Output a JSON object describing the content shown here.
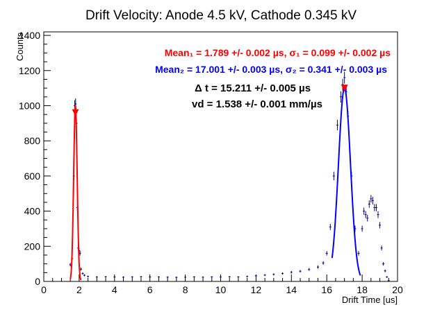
{
  "chart_data": {
    "type": "histogram",
    "title": "Drift Velocity: Anode 4.5 kV, Cathode 0.345 kV",
    "xlabel": "Drift Time [us]",
    "ylabel": "Counts",
    "xlim": [
      0,
      20
    ],
    "ylim": [
      0,
      1420
    ],
    "x_ticks": [
      "0",
      "2",
      "4",
      "6",
      "8",
      "10",
      "12",
      "14",
      "16",
      "18",
      "20"
    ],
    "y_ticks": [
      "0",
      "200",
      "400",
      "600",
      "800",
      "1000",
      "1200",
      "1400"
    ],
    "colors": {
      "data": "#00008b",
      "fit1": "#ff0000",
      "fit2": "#0000ff",
      "annot1": "#ff0000",
      "annot2": "#0000ff",
      "annot3": "#000000"
    },
    "annotations": {
      "mean1": "Mean₁ = 1.789 +/- 0.002 µs, σ₁ = 0.099 +/- 0.002 µs",
      "mean2": "Mean₂ = 17.001 +/- 0.003 µs, σ₂ = 0.341 +/- 0.003 µs",
      "dt": "Δ t = 15.211 +/- 0.005 µs",
      "vd": "vd = 1.538 +/- 0.001 mm/µs"
    },
    "markers": [
      {
        "x": 1.789,
        "y": 960,
        "color": "#ff0000"
      },
      {
        "x": 17.001,
        "y": 1100,
        "color": "#ff0000"
      }
    ],
    "fits": [
      {
        "name": "",
        "mean": 1.789,
        "sigma": 0.099,
        "amp": 1000,
        "xrange": [
          1.5,
          2.1
        ],
        "color": "#ff0000"
      },
      {
        "name": "",
        "mean": 17.001,
        "sigma": 0.341,
        "amp": 1100,
        "xrange": [
          16.3,
          17.9
        ],
        "color": "#0000ff"
      }
    ],
    "series": [
      {
        "x": [
          1.5,
          1.6,
          1.7,
          1.75,
          1.8,
          1.85,
          1.9,
          1.95,
          2.0,
          2.05,
          2.1,
          2.2,
          2.3,
          2.5,
          3.0,
          3.5,
          4.0,
          4.5,
          5.0,
          5.5,
          6.0,
          6.5,
          7.0,
          7.5,
          8.0,
          8.5,
          9.0,
          9.5,
          10.0,
          10.5,
          11.0,
          11.5,
          12.0,
          12.5,
          13.0,
          13.5,
          14.0,
          14.5,
          15.0,
          15.5,
          15.8,
          16.0,
          16.2,
          16.4,
          16.6,
          16.8,
          16.9,
          17.0,
          17.1,
          17.2,
          17.4,
          17.6,
          17.8,
          18.0,
          18.1,
          18.2,
          18.3,
          18.4,
          18.5,
          18.6,
          18.7,
          18.8,
          18.9,
          19.0,
          19.1,
          19.2,
          19.3,
          19.4,
          19.5
        ],
        "y": [
          95,
          130,
          600,
          1000,
          1010,
          900,
          420,
          190,
          175,
          160,
          70,
          45,
          35,
          28,
          25,
          26,
          25,
          24,
          25,
          26,
          25,
          25,
          24,
          23,
          24,
          25,
          24,
          25,
          25,
          26,
          25,
          28,
          32,
          36,
          40,
          45,
          52,
          58,
          68,
          82,
          105,
          160,
          310,
          600,
          890,
          1050,
          1120,
          1160,
          1080,
          940,
          600,
          300,
          160,
          300,
          400,
          380,
          360,
          440,
          470,
          460,
          420,
          420,
          380,
          320,
          190,
          100,
          60,
          25,
          5
        ]
      }
    ]
  }
}
